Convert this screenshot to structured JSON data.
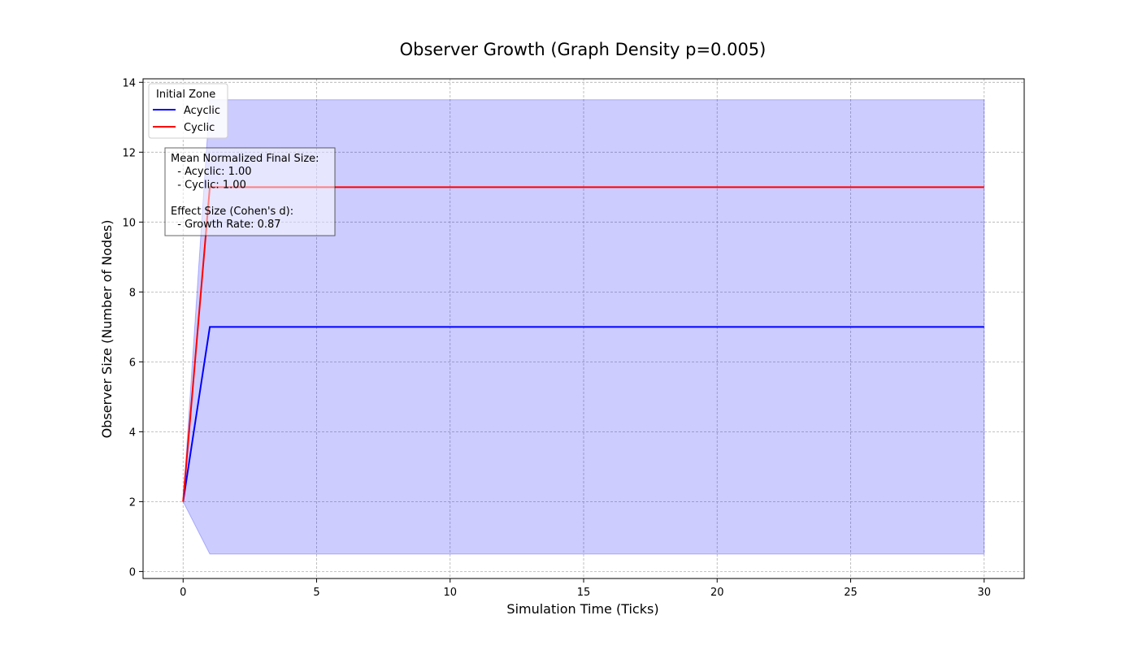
{
  "chart_data": {
    "type": "line",
    "title": "Observer Growth (Graph Density p=0.005)",
    "xlabel": "Simulation Time (Ticks)",
    "ylabel": "Observer Size (Number of Nodes)",
    "xlim": [
      -1.5,
      31.5
    ],
    "ylim": [
      -0.2,
      14.1
    ],
    "xticks": [
      0,
      5,
      10,
      15,
      20,
      25,
      30
    ],
    "yticks": [
      0,
      2,
      4,
      6,
      8,
      10,
      12,
      14
    ],
    "grid": true,
    "legend": {
      "title": "Initial Zone",
      "placement": "top-left",
      "entries": [
        "Acyclic",
        "Cyclic"
      ]
    },
    "x": [
      0,
      1,
      2,
      3,
      4,
      5,
      6,
      7,
      8,
      9,
      10,
      11,
      12,
      13,
      14,
      15,
      16,
      17,
      18,
      19,
      20,
      21,
      22,
      23,
      24,
      25,
      26,
      27,
      28,
      29,
      30
    ],
    "series": [
      {
        "name": "Acyclic",
        "color": "#0000ff",
        "values": [
          2,
          7,
          7,
          7,
          7,
          7,
          7,
          7,
          7,
          7,
          7,
          7,
          7,
          7,
          7,
          7,
          7,
          7,
          7,
          7,
          7,
          7,
          7,
          7,
          7,
          7,
          7,
          7,
          7,
          7,
          7
        ],
        "band_lower": [
          2,
          0.5,
          0.5,
          0.5,
          0.5,
          0.5,
          0.5,
          0.5,
          0.5,
          0.5,
          0.5,
          0.5,
          0.5,
          0.5,
          0.5,
          0.5,
          0.5,
          0.5,
          0.5,
          0.5,
          0.5,
          0.5,
          0.5,
          0.5,
          0.5,
          0.5,
          0.5,
          0.5,
          0.5,
          0.5,
          0.5
        ],
        "band_upper": [
          2,
          13.5,
          13.5,
          13.5,
          13.5,
          13.5,
          13.5,
          13.5,
          13.5,
          13.5,
          13.5,
          13.5,
          13.5,
          13.5,
          13.5,
          13.5,
          13.5,
          13.5,
          13.5,
          13.5,
          13.5,
          13.5,
          13.5,
          13.5,
          13.5,
          13.5,
          13.5,
          13.5,
          13.5,
          13.5,
          13.5
        ],
        "band_color": "#0000ff"
      },
      {
        "name": "Cyclic",
        "color": "#ff0000",
        "values": [
          2,
          11,
          11,
          11,
          11,
          11,
          11,
          11,
          11,
          11,
          11,
          11,
          11,
          11,
          11,
          11,
          11,
          11,
          11,
          11,
          11,
          11,
          11,
          11,
          11,
          11,
          11,
          11,
          11,
          11,
          11
        ]
      }
    ],
    "annotation": [
      "Mean Normalized Final Size:",
      "  - Acyclic: 1.00",
      "  - Cyclic: 1.00",
      "",
      "Effect Size (Cohen's d):",
      "  - Growth Rate: 0.87"
    ]
  }
}
